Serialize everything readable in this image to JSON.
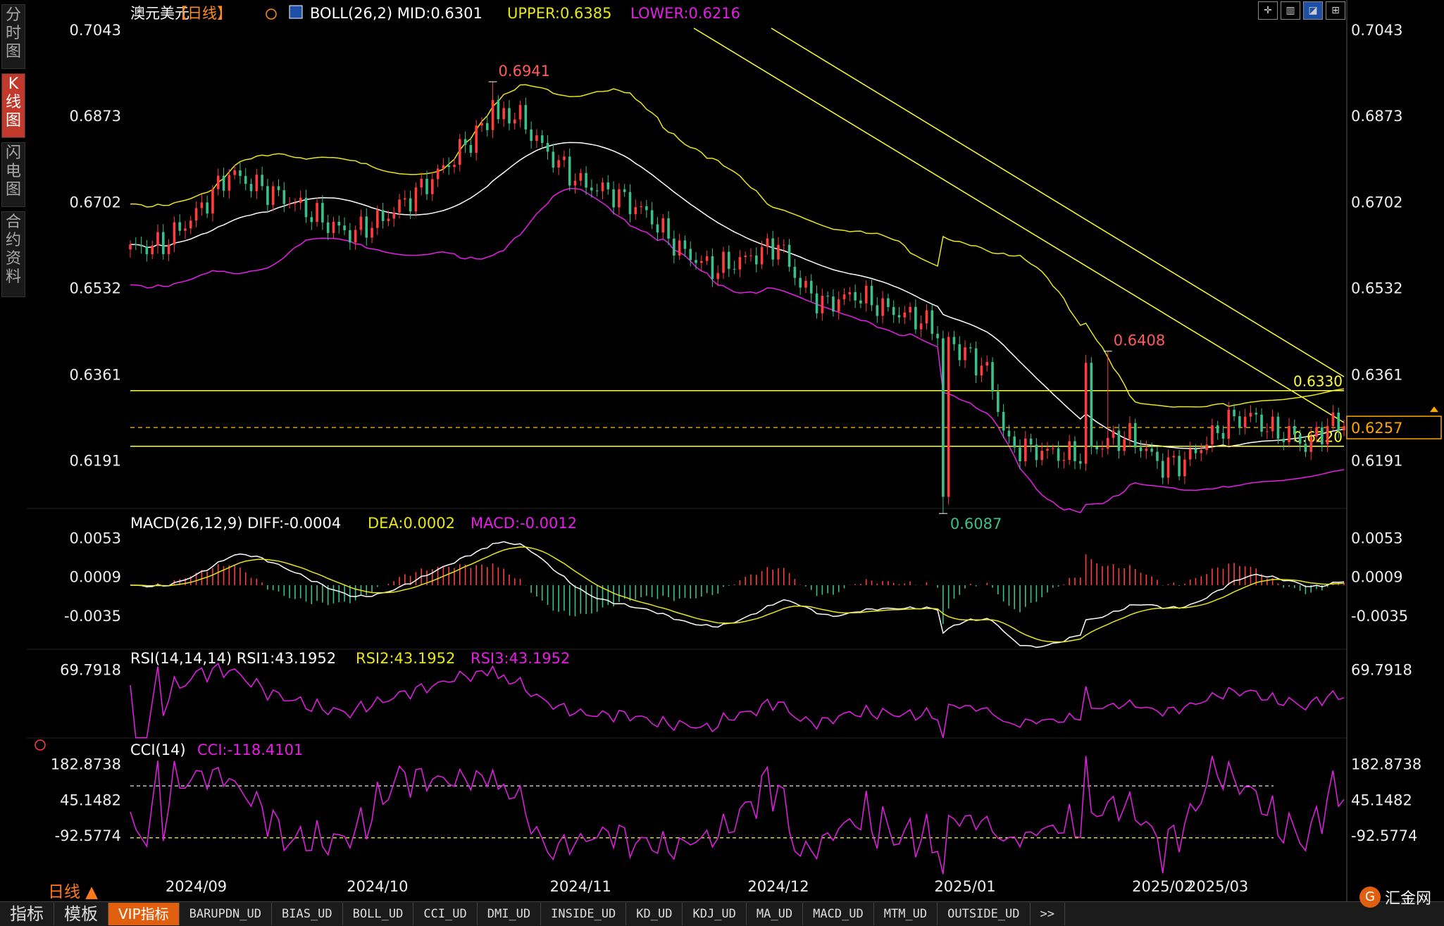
{
  "header": {
    "symbol": "澳元美元",
    "period": "【日线】",
    "boll_text": "BOLL(26,2) MID:0.6301",
    "upper_text": "UPPER:0.6385",
    "lower_text": "LOWER:0.6216"
  },
  "macd_header": {
    "name": "MACD(26,12,9) DIFF:-0.0004",
    "dea": "DEA:0.0002",
    "macd": "MACD:-0.0012"
  },
  "rsi_header": {
    "name": "RSI(14,14,14) RSI1:43.1952",
    "rsi2": "RSI2:43.1952",
    "rsi3": "RSI3:43.1952"
  },
  "cci_header": {
    "name": "CCI(14)",
    "cci": "CCI:-118.4101"
  },
  "sidebar": [
    "分时图",
    "K线图",
    "闪电图",
    "合约资料"
  ],
  "sidebar_active": 1,
  "period_label": "日线 ▲",
  "bottom_tabs": [
    "指标",
    "模板",
    "VIP指标",
    "BARUPDN_UD",
    "BIAS_UD",
    "BOLL_UD",
    "CCI_UD",
    "DMI_UD",
    "INSIDE_UD",
    "KD_UD",
    "KDJ_UD",
    "MA_UD",
    "MACD_UD",
    "MTM_UD",
    "OUTSIDE_UD",
    ">>"
  ],
  "logo_text": "汇金网",
  "colors": {
    "up": "#ff3d3d",
    "down": "#3cc08a",
    "upper": "#e6e619",
    "mid": "#ffffff",
    "lower": "#e61ee6",
    "level": "#ffff33",
    "price_box": "#ffa500"
  },
  "chart_data": {
    "type": "candlestick",
    "title": "澳元美元【日线】",
    "x_labels": [
      "2024/09",
      "2024/10",
      "2024/11",
      "2024/12",
      "2025/01",
      "2025/02",
      "2025/03"
    ],
    "price_axis": {
      "ticks": [
        "0.7043",
        "0.6873",
        "0.6702",
        "0.6532",
        "0.6361",
        "0.6191"
      ],
      "range": [
        0.6097,
        0.7047
      ]
    },
    "annotations": [
      {
        "text": "0.6941",
        "price": 0.6941,
        "type": "high"
      },
      {
        "text": "0.6408",
        "price": 0.6408,
        "type": "high"
      },
      {
        "text": "0.6087",
        "price": 0.6087,
        "type": "low"
      }
    ],
    "levels": [
      {
        "text": "0.6330",
        "price": 0.633,
        "style": "solid"
      },
      {
        "text": "0.6220",
        "price": 0.622,
        "style": "solid"
      },
      {
        "price": 0.6257,
        "style": "dashed"
      }
    ],
    "current_price": "0.6257",
    "macd_axis": {
      "ticks": [
        "0.0053",
        "0.0009",
        "-0.0035"
      ],
      "range": [
        -0.0055,
        0.0063
      ]
    },
    "rsi_axis": {
      "ticks": [
        "69.7918"
      ],
      "range": [
        25,
        75
      ]
    },
    "cci_axis": {
      "ticks": [
        "182.8738",
        "45.1482",
        "-92.5774"
      ],
      "range": [
        -250,
        225
      ]
    },
    "cci_levels": [
      100,
      -100
    ]
  }
}
